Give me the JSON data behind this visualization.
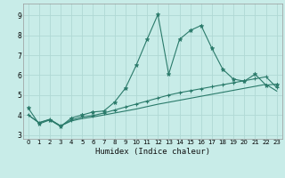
{
  "xlabel": "Humidex (Indice chaleur)",
  "background_color": "#c8ece8",
  "grid_color": "#b0d8d4",
  "line_color": "#2a7a6a",
  "xlim": [
    -0.5,
    23.5
  ],
  "ylim": [
    2.8,
    9.6
  ],
  "xticks": [
    0,
    1,
    2,
    3,
    4,
    5,
    6,
    7,
    8,
    9,
    10,
    11,
    12,
    13,
    14,
    15,
    16,
    17,
    18,
    19,
    20,
    21,
    22,
    23
  ],
  "yticks": [
    3,
    4,
    5,
    6,
    7,
    8,
    9
  ],
  "line1_x": [
    0,
    1,
    2,
    3,
    4,
    5,
    6,
    7,
    8,
    9,
    10,
    11,
    12,
    13,
    14,
    15,
    16,
    17,
    18,
    19,
    20,
    21,
    22,
    23
  ],
  "line1_y": [
    4.35,
    3.55,
    3.75,
    3.42,
    3.85,
    4.0,
    4.15,
    4.2,
    4.65,
    5.35,
    6.5,
    7.8,
    9.05,
    6.05,
    7.8,
    8.25,
    8.5,
    7.35,
    6.3,
    5.8,
    5.7,
    6.05,
    5.5,
    5.55
  ],
  "line2_x": [
    0,
    1,
    2,
    3,
    4,
    5,
    6,
    7,
    8,
    9,
    10,
    11,
    12,
    13,
    14,
    15,
    16,
    17,
    18,
    19,
    20,
    21,
    22,
    23
  ],
  "line2_y": [
    4.0,
    3.6,
    3.78,
    3.45,
    3.75,
    3.9,
    3.97,
    4.1,
    4.25,
    4.4,
    4.55,
    4.7,
    4.85,
    5.0,
    5.12,
    5.22,
    5.32,
    5.42,
    5.52,
    5.62,
    5.72,
    5.82,
    5.92,
    5.38
  ],
  "line3_x": [
    0,
    1,
    2,
    3,
    4,
    5,
    6,
    7,
    8,
    9,
    10,
    11,
    12,
    13,
    14,
    15,
    16,
    17,
    18,
    19,
    20,
    21,
    22,
    23
  ],
  "line3_y": [
    4.0,
    3.62,
    3.78,
    3.45,
    3.7,
    3.82,
    3.9,
    4.0,
    4.1,
    4.2,
    4.3,
    4.42,
    4.54,
    4.64,
    4.74,
    4.84,
    4.94,
    5.04,
    5.14,
    5.24,
    5.34,
    5.44,
    5.54,
    5.2
  ]
}
